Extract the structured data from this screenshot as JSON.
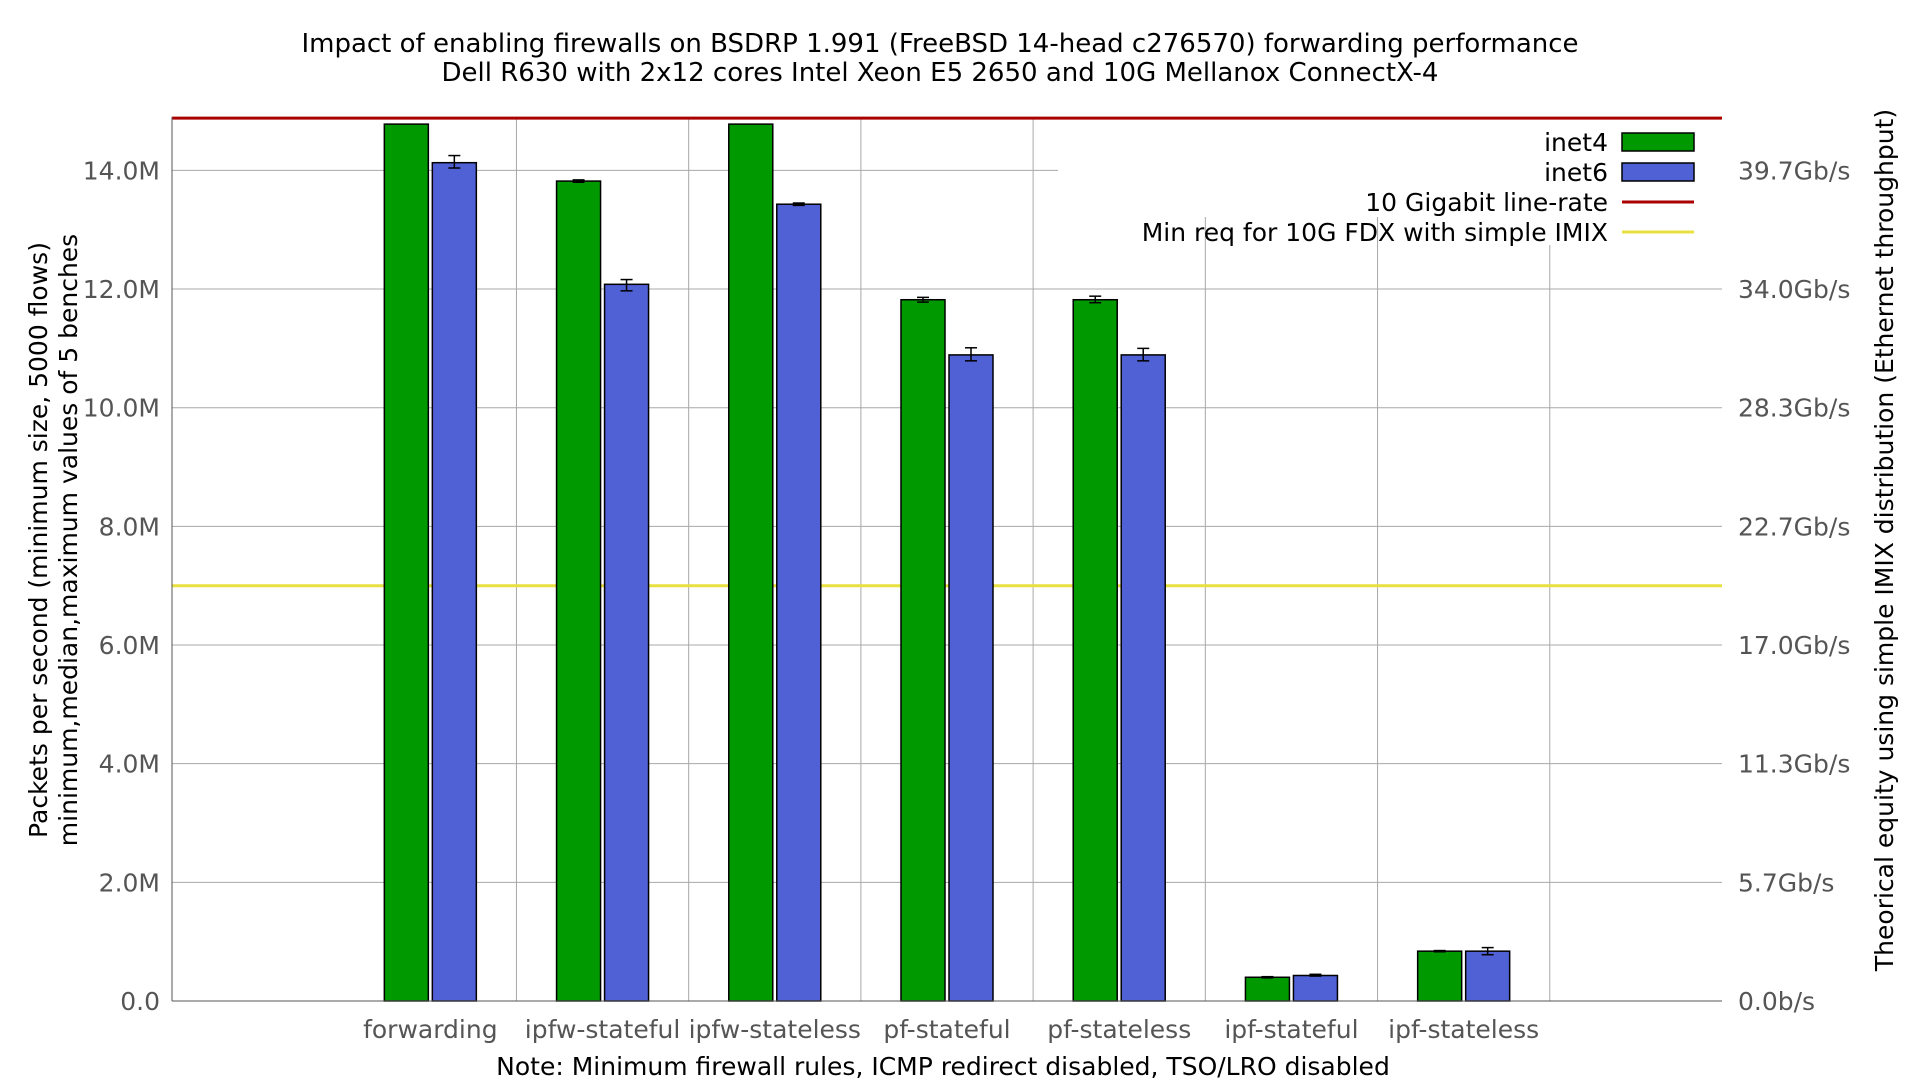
{
  "chart_data": {
    "type": "bar",
    "title": "Impact of enabling firewalls on BSDRP 1.991 (FreeBSD 14-head c276570) forwarding performance",
    "subtitle": "Dell R630 with 2x12 cores Intel Xeon E5 2650 and 10G Mellanox ConnectX-4",
    "xlabel": "Note: Minimum firewall rules, ICMP redirect disabled, TSO/LRO disabled",
    "ylabel": "Packets per second (minimum size, 5000 flows)",
    "ylabel2": "minimum,median,maximum values of 5 benches",
    "y2label": "Theorical equity using simple IMIX distribution (Ethernet throughput)",
    "ylim": [
      0,
      14.9
    ],
    "yticks": [
      {
        "value": 0,
        "label": "0.0"
      },
      {
        "value": 2,
        "label": "2.0M"
      },
      {
        "value": 4,
        "label": "4.0M"
      },
      {
        "value": 6,
        "label": "6.0M"
      },
      {
        "value": 8,
        "label": "8.0M"
      },
      {
        "value": 10,
        "label": "10.0M"
      },
      {
        "value": 12,
        "label": "12.0M"
      },
      {
        "value": 14,
        "label": "14.0M"
      }
    ],
    "y2ticks": [
      {
        "value": 0,
        "label": "0.0b/s"
      },
      {
        "value": 2,
        "label": "5.7Gb/s"
      },
      {
        "value": 4,
        "label": "11.3Gb/s"
      },
      {
        "value": 6,
        "label": "17.0Gb/s"
      },
      {
        "value": 8,
        "label": "22.7Gb/s"
      },
      {
        "value": 10,
        "label": "28.3Gb/s"
      },
      {
        "value": 12,
        "label": "34.0Gb/s"
      },
      {
        "value": 14,
        "label": "39.7Gb/s"
      }
    ],
    "categories": [
      "forwarding",
      "ipfw-stateful",
      "ipfw-stateless",
      "pf-stateful",
      "pf-stateless",
      "ipf-stateful",
      "ipf-stateless"
    ],
    "series": [
      {
        "name": "inet4",
        "color": "#009900",
        "values": [
          14.78,
          13.82,
          14.78,
          11.82,
          11.82,
          0.4,
          0.84
        ],
        "err_low": [
          14.78,
          13.8,
          14.78,
          11.78,
          11.77,
          0.39,
          0.83
        ],
        "err_high": [
          14.78,
          13.84,
          14.78,
          11.86,
          11.88,
          0.41,
          0.85
        ]
      },
      {
        "name": "inet6",
        "color": "#5060D5",
        "values": [
          14.13,
          12.08,
          13.43,
          10.89,
          10.89,
          0.43,
          0.84
        ],
        "err_low": [
          14.04,
          11.97,
          13.41,
          10.79,
          10.79,
          0.42,
          0.78
        ],
        "err_high": [
          14.25,
          12.16,
          13.45,
          11.01,
          11.0,
          0.45,
          0.9
        ]
      }
    ],
    "reference_lines": [
      {
        "name": "10 Gigabit line-rate",
        "value": 14.88,
        "color": "#AA0000"
      },
      {
        "name": "Min req for 10G FDX with simple IMIX",
        "value": 7.0,
        "color": "#E8E040"
      }
    ],
    "grid": true,
    "legend_position": "top-right"
  }
}
